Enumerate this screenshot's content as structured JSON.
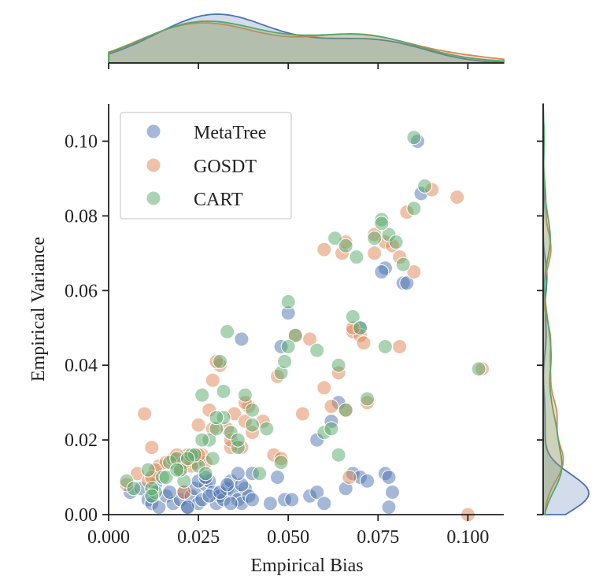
{
  "chart_data": {
    "type": "scatter",
    "title": "",
    "xlabel": "Empirical Bias",
    "ylabel": "Empirical Variance",
    "xlim": [
      0.0,
      0.11
    ],
    "ylim": [
      0.0,
      0.11
    ],
    "xticks": [
      0.0,
      0.025,
      0.05,
      0.075,
      0.1
    ],
    "xtick_labels": [
      "0.000",
      "0.025",
      "0.050",
      "0.075",
      "0.100"
    ],
    "yticks": [
      0.0,
      0.02,
      0.04,
      0.06,
      0.08,
      0.1
    ],
    "ytick_labels": [
      "0.00",
      "0.02",
      "0.04",
      "0.06",
      "0.08",
      "0.10"
    ],
    "grid": false,
    "legend_position": "top-left",
    "marginals": "kde on top (bias) and right (variance) axes",
    "series": [
      {
        "name": "MetaTree",
        "color": "#4c72b0",
        "x": [
          0.006,
          0.009,
          0.011,
          0.012,
          0.014,
          0.016,
          0.018,
          0.02,
          0.021,
          0.022,
          0.023,
          0.024,
          0.025,
          0.026,
          0.027,
          0.028,
          0.029,
          0.03,
          0.031,
          0.032,
          0.033,
          0.034,
          0.035,
          0.036,
          0.037,
          0.038,
          0.039,
          0.04,
          0.022,
          0.025,
          0.028,
          0.031,
          0.034,
          0.037,
          0.04,
          0.013,
          0.017,
          0.027,
          0.033,
          0.036,
          0.045,
          0.047,
          0.049,
          0.051,
          0.056,
          0.058,
          0.06,
          0.066,
          0.068,
          0.07,
          0.072,
          0.077,
          0.078,
          0.079,
          0.078,
          0.05,
          0.048,
          0.037,
          0.077,
          0.076,
          0.082,
          0.083,
          0.087,
          0.086,
          0.07,
          0.064,
          0.062,
          0.058
        ],
        "y": [
          0.006,
          0.007,
          0.004,
          0.003,
          0.002,
          0.005,
          0.003,
          0.004,
          0.006,
          0.002,
          0.005,
          0.007,
          0.003,
          0.004,
          0.008,
          0.009,
          0.006,
          0.003,
          0.005,
          0.004,
          0.007,
          0.009,
          0.006,
          0.004,
          0.003,
          0.007,
          0.005,
          0.004,
          0.002,
          0.009,
          0.005,
          0.006,
          0.003,
          0.008,
          0.011,
          0.008,
          0.006,
          0.01,
          0.008,
          0.011,
          0.003,
          0.01,
          0.004,
          0.004,
          0.005,
          0.006,
          0.003,
          0.007,
          0.011,
          0.01,
          0.009,
          0.011,
          0.01,
          0.006,
          0.002,
          0.054,
          0.045,
          0.047,
          0.066,
          0.065,
          0.062,
          0.062,
          0.086,
          0.1,
          0.05,
          0.03,
          0.025,
          0.02
        ]
      },
      {
        "name": "GOSDT",
        "color": "#dd8452",
        "x": [
          0.005,
          0.008,
          0.01,
          0.012,
          0.014,
          0.016,
          0.018,
          0.02,
          0.022,
          0.024,
          0.026,
          0.028,
          0.011,
          0.013,
          0.019,
          0.023,
          0.027,
          0.029,
          0.031,
          0.033,
          0.035,
          0.037,
          0.039,
          0.021,
          0.025,
          0.03,
          0.034,
          0.038,
          0.04,
          0.043,
          0.046,
          0.048,
          0.054,
          0.056,
          0.06,
          0.062,
          0.064,
          0.066,
          0.068,
          0.07,
          0.072,
          0.074,
          0.077,
          0.079,
          0.081,
          0.083,
          0.085,
          0.09,
          0.097,
          0.1,
          0.104,
          0.06,
          0.065,
          0.066,
          0.068,
          0.071,
          0.081,
          0.074,
          0.067,
          0.052,
          0.047,
          0.038,
          0.029,
          0.025,
          0.012,
          0.021,
          0.034
        ],
        "y": [
          0.008,
          0.011,
          0.027,
          0.018,
          0.013,
          0.014,
          0.015,
          0.012,
          0.016,
          0.014,
          0.016,
          0.028,
          0.009,
          0.012,
          0.016,
          0.013,
          0.014,
          0.036,
          0.04,
          0.023,
          0.027,
          0.018,
          0.029,
          0.006,
          0.024,
          0.041,
          0.018,
          0.025,
          0.022,
          0.025,
          0.016,
          0.015,
          0.027,
          0.047,
          0.034,
          0.029,
          0.038,
          0.028,
          0.049,
          0.048,
          0.03,
          0.075,
          0.073,
          0.072,
          0.069,
          0.081,
          0.065,
          0.087,
          0.085,
          0.0,
          0.039,
          0.071,
          0.07,
          0.073,
          0.05,
          0.046,
          0.045,
          0.07,
          0.01,
          0.048,
          0.037,
          0.03,
          0.023,
          0.016,
          0.01,
          0.014,
          0.02
        ]
      },
      {
        "name": "CART",
        "color": "#55a868",
        "x": [
          0.005,
          0.007,
          0.011,
          0.013,
          0.015,
          0.017,
          0.019,
          0.021,
          0.023,
          0.025,
          0.027,
          0.029,
          0.012,
          0.016,
          0.02,
          0.024,
          0.028,
          0.032,
          0.036,
          0.04,
          0.044,
          0.026,
          0.03,
          0.032,
          0.034,
          0.036,
          0.038,
          0.04,
          0.042,
          0.048,
          0.05,
          0.052,
          0.058,
          0.06,
          0.062,
          0.064,
          0.066,
          0.068,
          0.07,
          0.072,
          0.076,
          0.078,
          0.08,
          0.082,
          0.085,
          0.088,
          0.103,
          0.063,
          0.066,
          0.069,
          0.076,
          0.074,
          0.077,
          0.085,
          0.05,
          0.048,
          0.049,
          0.033,
          0.031,
          0.03,
          0.026,
          0.022,
          0.019,
          0.012,
          0.064
        ],
        "y": [
          0.009,
          0.007,
          0.012,
          0.006,
          0.01,
          0.014,
          0.015,
          0.009,
          0.016,
          0.013,
          0.011,
          0.015,
          0.007,
          0.01,
          0.012,
          0.016,
          0.02,
          0.026,
          0.018,
          0.024,
          0.023,
          0.032,
          0.023,
          0.033,
          0.022,
          0.02,
          0.032,
          0.028,
          0.011,
          0.014,
          0.057,
          0.048,
          0.044,
          0.022,
          0.023,
          0.04,
          0.028,
          0.053,
          0.05,
          0.031,
          0.079,
          0.075,
          0.073,
          0.067,
          0.101,
          0.088,
          0.039,
          0.074,
          0.072,
          0.069,
          0.078,
          0.074,
          0.045,
          0.082,
          0.045,
          0.038,
          0.041,
          0.049,
          0.041,
          0.026,
          0.02,
          0.015,
          0.012,
          0.005,
          0.016
        ]
      }
    ]
  }
}
